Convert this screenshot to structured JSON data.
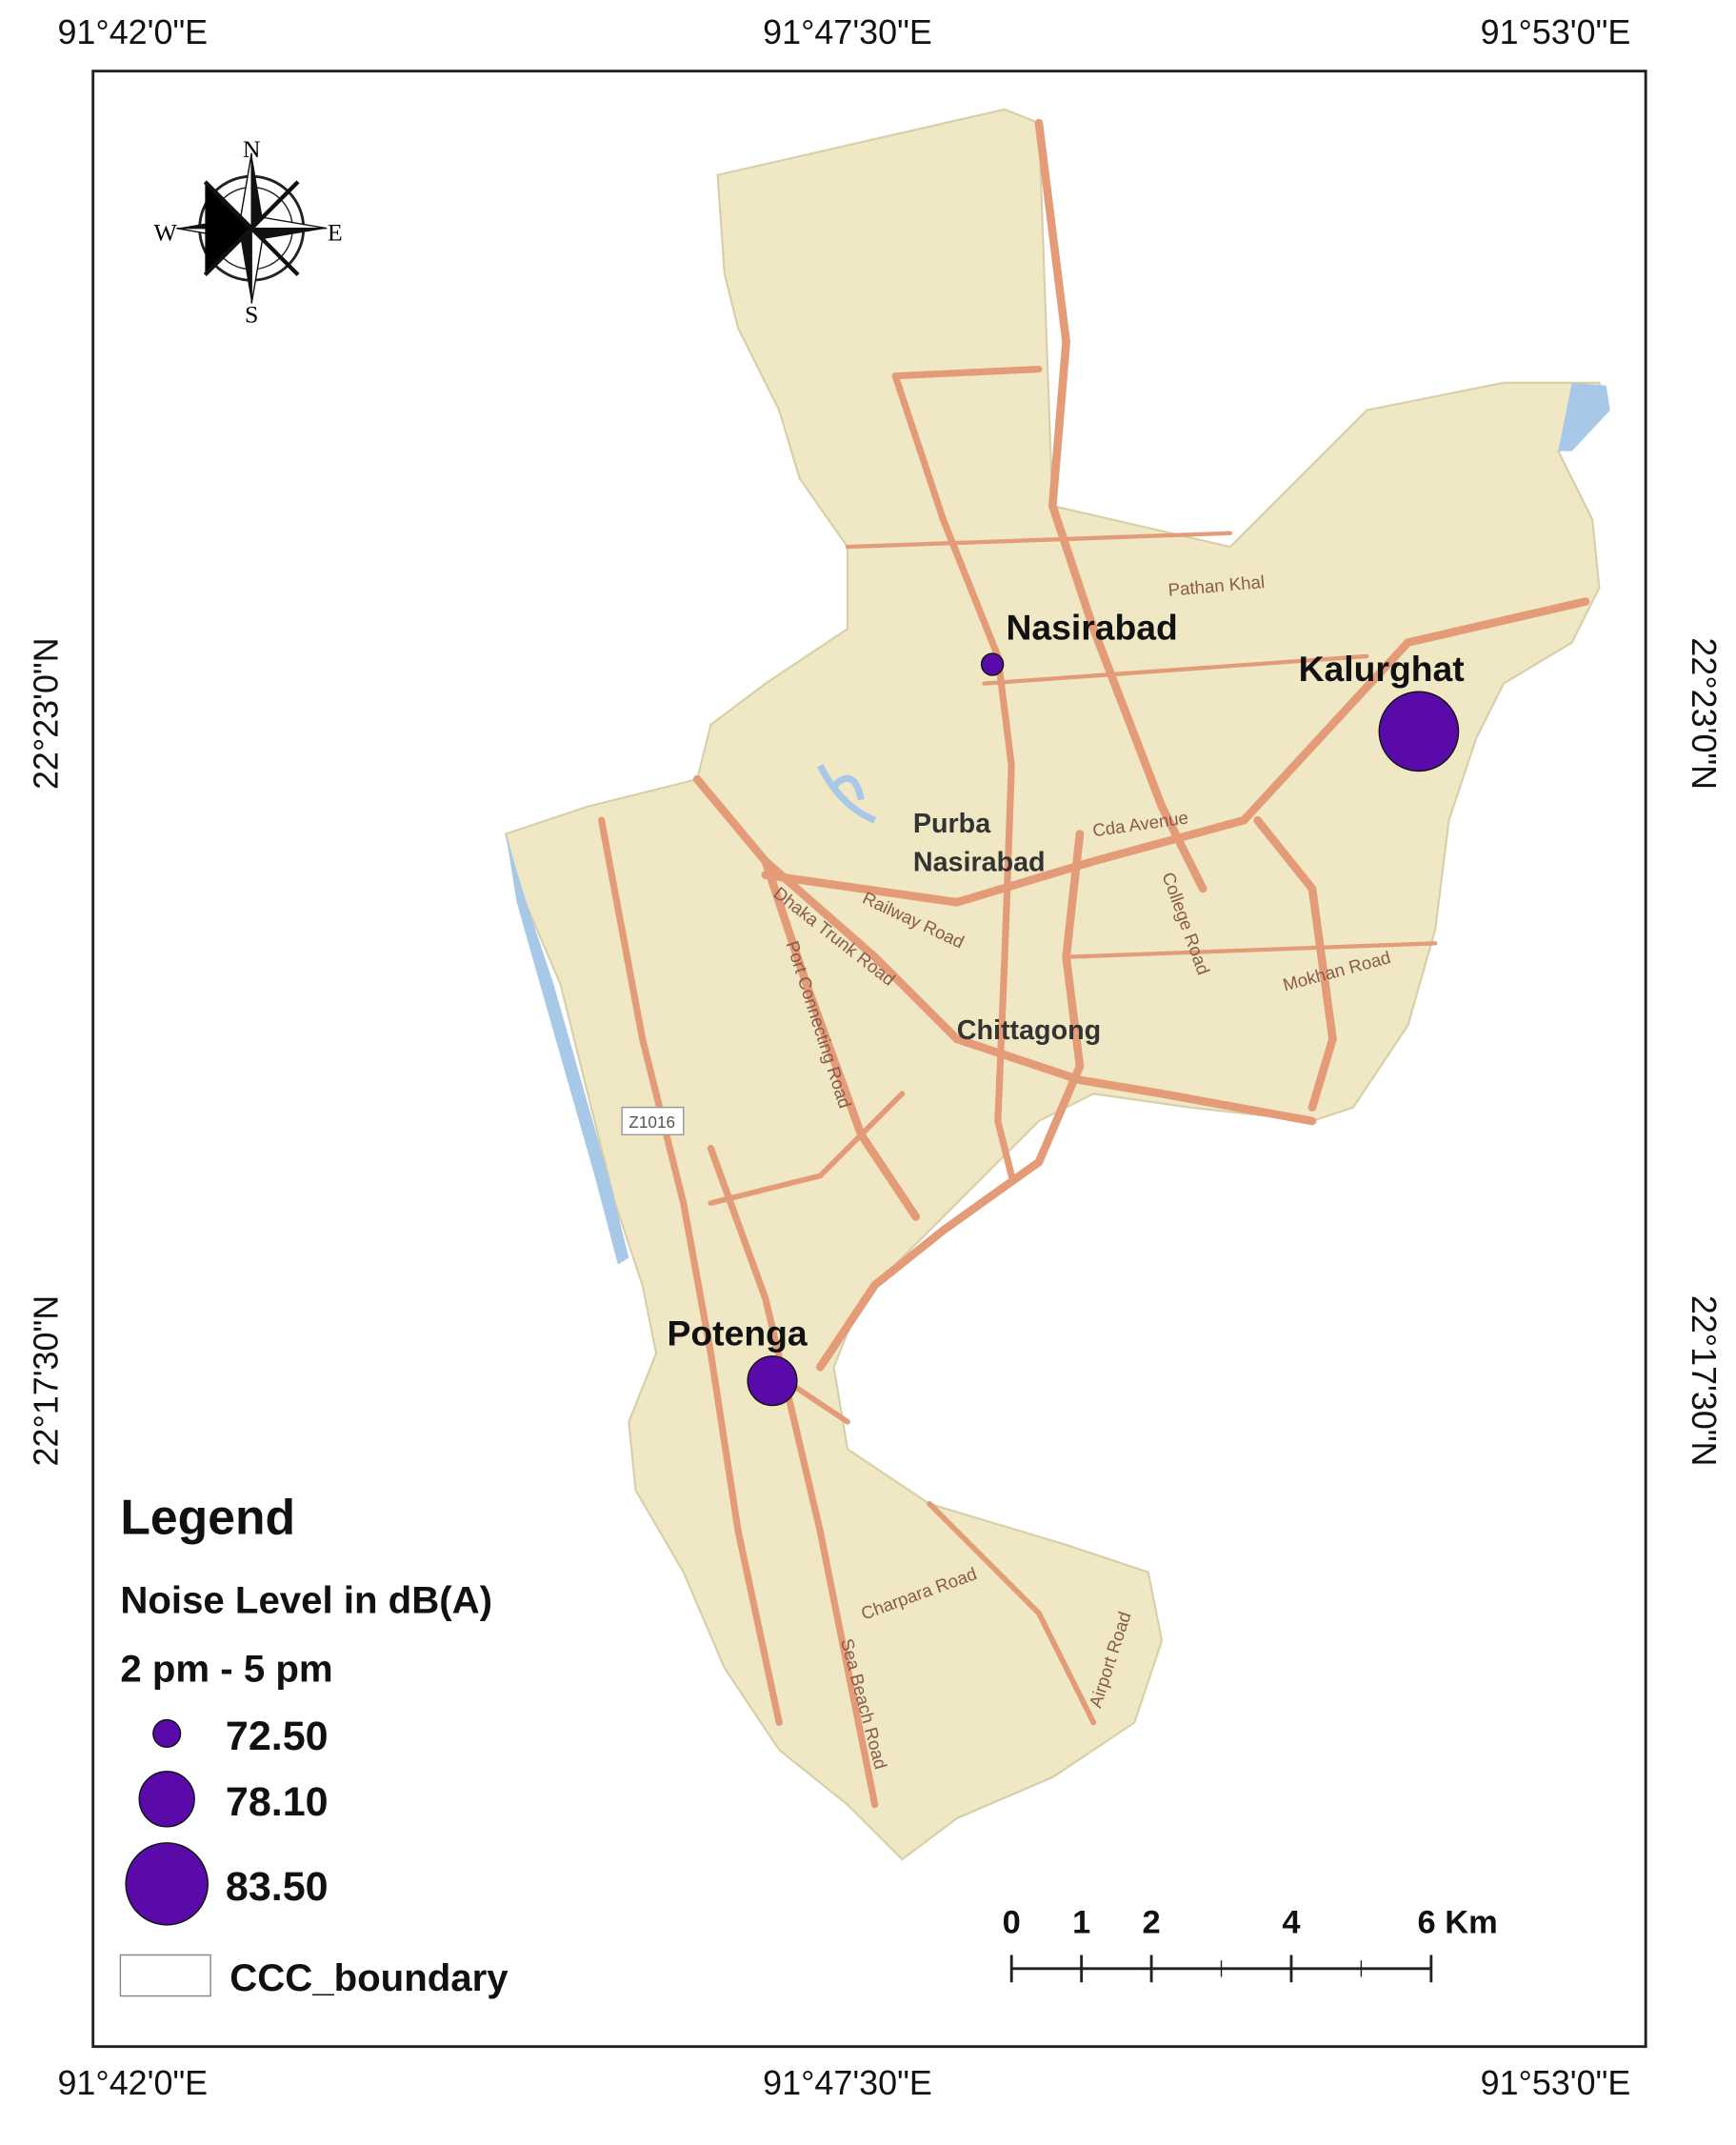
{
  "graticule": {
    "x_labels": [
      "91°42'0\"E",
      "91°47'30\"E",
      "91°53'0\"E"
    ],
    "y_labels": [
      "22°23'0\"N",
      "22°17'30\"N"
    ]
  },
  "compass": {
    "n": "N",
    "s": "S",
    "e": "E",
    "w": "W"
  },
  "places": [
    "Nasirabad",
    "Kalurghat",
    "Potenga",
    "Purba",
    "Nasirabad",
    "Chittagong"
  ],
  "roads": [
    "Pathan Khal",
    "Cda Avenue",
    "College Road",
    "Railway Road",
    "Dhaka Trunk Road",
    "Port Connecting Road",
    "Mokhan Road",
    "Charpara Road",
    "Sea Beach Road",
    "Airport Road",
    "Z1016"
  ],
  "legend": {
    "title": "Legend",
    "subtitle": "Noise Level in dB(A)",
    "period": "2 pm - 5 pm",
    "items": [
      {
        "value": 72.5,
        "label": "72.50"
      },
      {
        "value": 78.1,
        "label": "78.10"
      },
      {
        "value": 83.5,
        "label": "83.50"
      }
    ],
    "boundary": "CCC_boundary",
    "color": "#5a0aa8"
  },
  "scale_bar": {
    "ticks": [
      0,
      1,
      2,
      4,
      {
        "value": 6,
        "label": "6 Km"
      }
    ]
  }
}
